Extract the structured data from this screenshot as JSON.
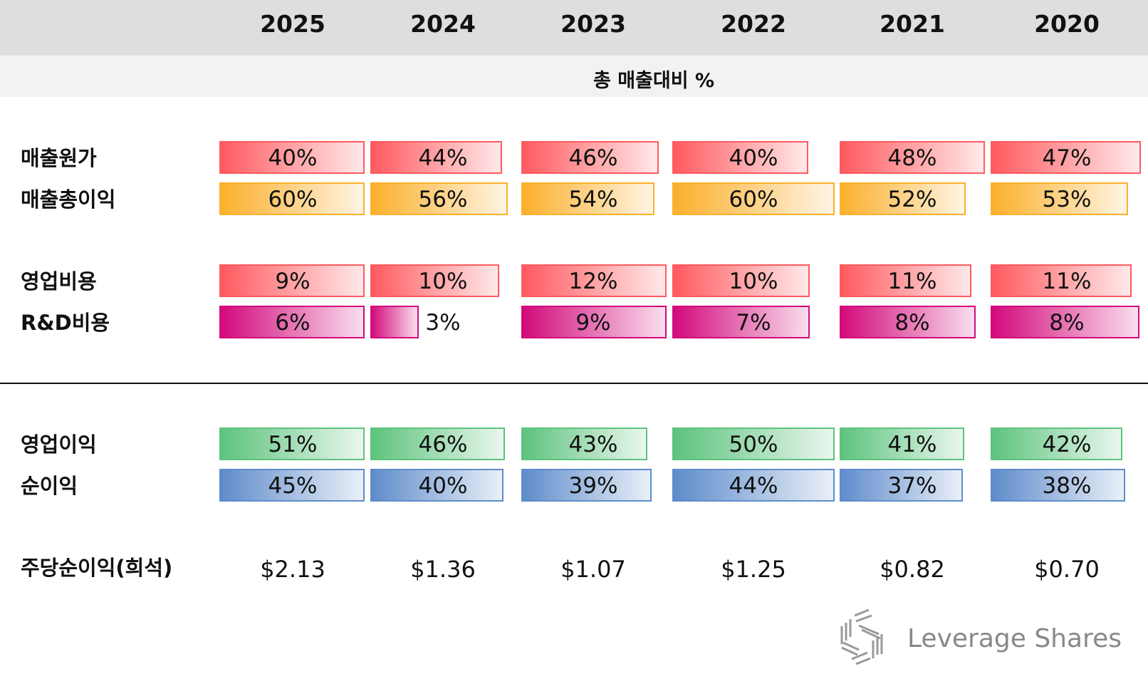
{
  "years": [
    "2025",
    "2024",
    "2023",
    "2022",
    "2021",
    "2020"
  ],
  "subtitle": "총 매출대비 %",
  "chart_data": {
    "type": "table",
    "title": "총 매출대비 %",
    "categories": [
      "2025",
      "2024",
      "2023",
      "2022",
      "2021",
      "2020"
    ],
    "series": [
      {
        "name": "매출원가",
        "values": [
          "40%",
          "44%",
          "46%",
          "40%",
          "48%",
          "47%"
        ],
        "color": "#ff5a5f"
      },
      {
        "name": "매출총이익",
        "values": [
          "60%",
          "56%",
          "54%",
          "60%",
          "52%",
          "53%"
        ],
        "color": "#fbb02c"
      },
      {
        "name": "영업비용",
        "values": [
          "9%",
          "10%",
          "12%",
          "10%",
          "11%",
          "11%"
        ],
        "color": "#ff5a5f"
      },
      {
        "name": "R&D비용",
        "values": [
          "6%",
          "3%",
          "9%",
          "7%",
          "8%",
          "8%"
        ],
        "color": "#d30a7c"
      },
      {
        "name": "영업이익",
        "values": [
          "51%",
          "46%",
          "43%",
          "50%",
          "41%",
          "42%"
        ],
        "color": "#5dc37d"
      },
      {
        "name": "순이익",
        "values": [
          "45%",
          "40%",
          "39%",
          "44%",
          "37%",
          "38%"
        ],
        "color": "#5f8ccb"
      }
    ],
    "eps": {
      "name": "주당순이익(희석)",
      "values": [
        "$2.13",
        "$1.36",
        "$1.07",
        "$1.25",
        "$0.82",
        "$0.70"
      ]
    }
  },
  "brand": "Leverage Shares"
}
